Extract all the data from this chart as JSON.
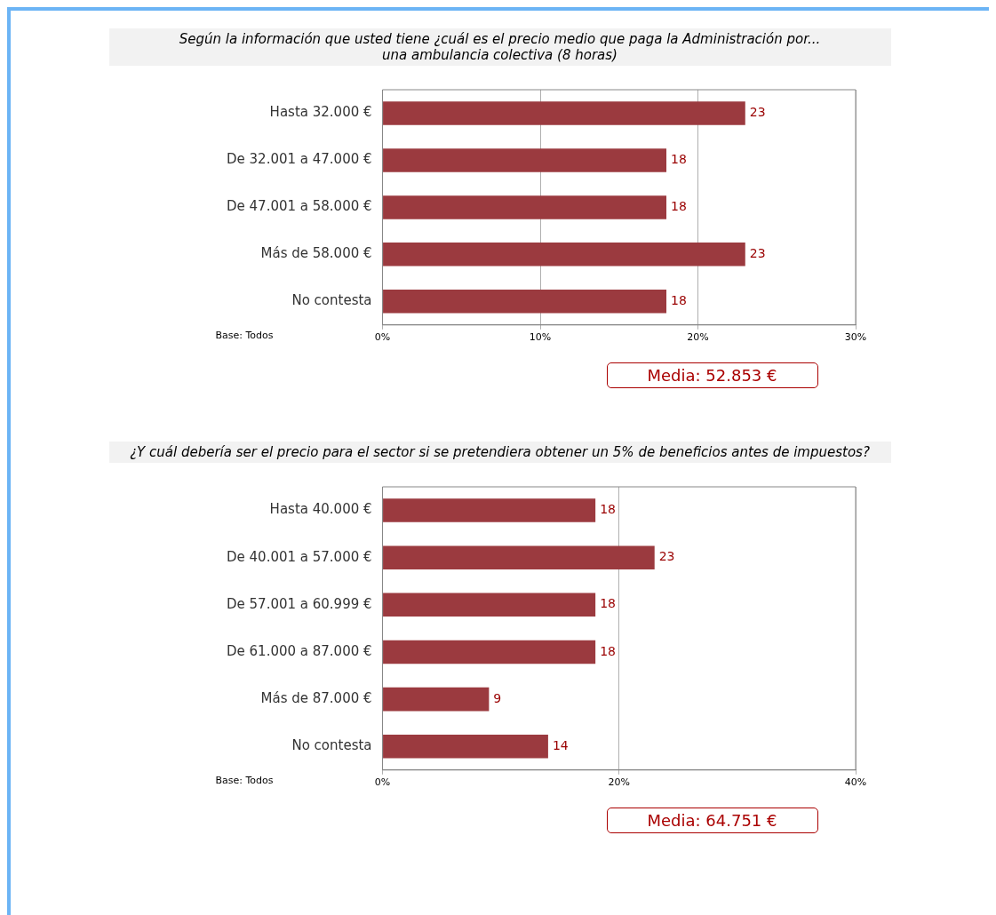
{
  "chart_data": [
    {
      "type": "bar",
      "orientation": "horizontal",
      "title": "Según la información que usted tiene ¿cuál es el precio medio que paga la Administración por...\nuna ambulancia colectiva (8 horas)",
      "categories": [
        "Hasta 32.000 €",
        "De 32.001 a 47.000 €",
        "De 47.001 a 58.000 €",
        "Más de 58.000 €",
        "No contesta"
      ],
      "values": [
        23,
        18,
        18,
        23,
        18
      ],
      "color": "#9b3a3f",
      "data_labels": true,
      "xlim": [
        0,
        30
      ],
      "xticks": [
        {
          "value": 0,
          "label": "0%"
        },
        {
          "value": 10,
          "label": "10%"
        },
        {
          "value": 20,
          "label": "20%"
        },
        {
          "value": 30,
          "label": "30%"
        }
      ],
      "grid": "x",
      "legend": false,
      "annotations": [
        "Base: Todos",
        "Media: 52.853 €"
      ]
    },
    {
      "type": "bar",
      "orientation": "horizontal",
      "title": "¿Y cuál debería ser el precio para el sector si se pretendiera obtener un 5% de beneficios antes de impuestos?",
      "categories": [
        "Hasta 40.000 €",
        "De 40.001 a 57.000 €",
        "De 57.001 a 60.999 €",
        "De 61.000 a 87.000 €",
        "Más de 87.000 €",
        "No contesta"
      ],
      "values": [
        18,
        23,
        18,
        18,
        9,
        14
      ],
      "color": "#9b3a3f",
      "data_labels": true,
      "xlim": [
        0,
        40
      ],
      "xticks": [
        {
          "value": 0,
          "label": "0%"
        },
        {
          "value": 20,
          "label": "20%"
        },
        {
          "value": 40,
          "label": "40%"
        }
      ],
      "grid": "x",
      "legend": false,
      "annotations": [
        "Base: Todos",
        "Media: 64.751 €"
      ]
    }
  ]
}
